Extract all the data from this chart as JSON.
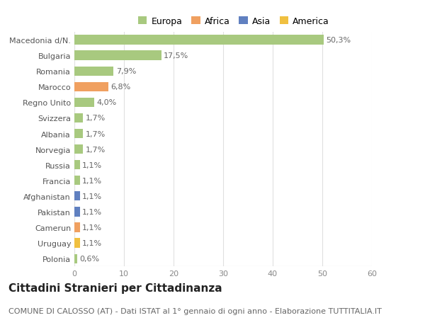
{
  "title": "Cittadini Stranieri per Cittadinanza",
  "subtitle": "COMUNE DI CALOSSO (AT) - Dati ISTAT al 1° gennaio di ogni anno - Elaborazione TUTTITALIA.IT",
  "categories": [
    "Polonia",
    "Uruguay",
    "Camerun",
    "Pakistan",
    "Afghanistan",
    "Francia",
    "Russia",
    "Norvegia",
    "Albania",
    "Svizzera",
    "Regno Unito",
    "Marocco",
    "Romania",
    "Bulgaria",
    "Macedonia d/N."
  ],
  "values": [
    0.6,
    1.1,
    1.1,
    1.1,
    1.1,
    1.1,
    1.1,
    1.7,
    1.7,
    1.7,
    4.0,
    6.8,
    7.9,
    17.5,
    50.3
  ],
  "labels": [
    "0,6%",
    "1,1%",
    "1,1%",
    "1,1%",
    "1,1%",
    "1,1%",
    "1,1%",
    "1,7%",
    "1,7%",
    "1,7%",
    "4,0%",
    "6,8%",
    "7,9%",
    "17,5%",
    "50,3%"
  ],
  "colors": [
    "#a8c97f",
    "#f0c040",
    "#f0a060",
    "#6080c0",
    "#6080c0",
    "#a8c97f",
    "#a8c97f",
    "#a8c97f",
    "#a8c97f",
    "#a8c97f",
    "#a8c97f",
    "#f0a060",
    "#a8c97f",
    "#a8c97f",
    "#a8c97f"
  ],
  "legend": [
    {
      "label": "Europa",
      "color": "#a8c97f"
    },
    {
      "label": "Africa",
      "color": "#f0a060"
    },
    {
      "label": "Asia",
      "color": "#6080c0"
    },
    {
      "label": "America",
      "color": "#f0c040"
    }
  ],
  "xlim": [
    0,
    60
  ],
  "xticks": [
    0,
    10,
    20,
    30,
    40,
    50,
    60
  ],
  "background_color": "#ffffff",
  "grid_color": "#e0e0e0",
  "bar_height": 0.6,
  "title_fontsize": 11,
  "subtitle_fontsize": 8,
  "label_fontsize": 8,
  "tick_fontsize": 8,
  "legend_fontsize": 9
}
